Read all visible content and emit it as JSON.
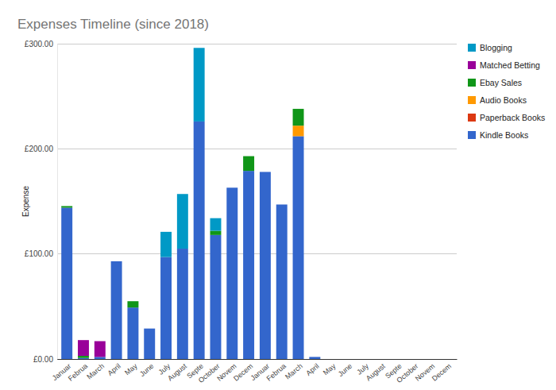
{
  "chart_data": {
    "type": "bar",
    "title": "Expenses Timeline (since 2018)",
    "y_label": "Expense",
    "stacked": true,
    "grid": true,
    "legend": "right",
    "categories": [
      "Januar",
      "Februa",
      "March",
      "April",
      "May",
      "June",
      "July",
      "August",
      "Septe",
      "October",
      "Novem",
      "Decem",
      "Januar",
      "Februa",
      "March",
      "April",
      "May",
      "June",
      "July",
      "August",
      "Septe",
      "October",
      "Novem",
      "Decem"
    ],
    "ylim": [
      0,
      300
    ],
    "yticks": [
      {
        "value": 0,
        "label": "£0.00"
      },
      {
        "value": 100,
        "label": "£100.00"
      },
      {
        "value": 200,
        "label": "£200.00"
      },
      {
        "value": 300,
        "label": "£300.00"
      }
    ],
    "series": [
      {
        "name": "Blogging",
        "color": "#0099c6",
        "values": [
          0,
          0,
          0,
          0,
          0,
          0,
          24,
          52,
          70,
          12,
          0,
          0,
          0,
          0,
          0,
          0,
          0,
          0,
          0,
          0,
          0,
          0,
          0,
          0
        ]
      },
      {
        "name": "Matched Betting",
        "color": "#990099",
        "values": [
          0,
          15,
          15,
          0,
          0,
          0,
          0,
          0,
          0,
          0,
          0,
          0,
          0,
          0,
          0,
          0,
          0,
          0,
          0,
          0,
          0,
          0,
          0,
          0
        ]
      },
      {
        "name": "Ebay Sales",
        "color": "#109618",
        "values": [
          1.5,
          2,
          0,
          0,
          6,
          0,
          0,
          0,
          0,
          4,
          0,
          14,
          0,
          0,
          16,
          0,
          0,
          0,
          0,
          0,
          0,
          0,
          0,
          0
        ]
      },
      {
        "name": "Audio Books",
        "color": "#ff9900",
        "values": [
          0,
          0,
          0,
          0,
          0,
          0,
          0,
          0,
          0,
          0,
          0,
          0,
          0,
          0,
          10,
          0,
          0,
          0,
          0,
          0,
          0,
          0,
          0,
          0
        ]
      },
      {
        "name": "Paperback Books",
        "color": "#dc3912",
        "values": [
          0,
          0,
          0,
          0,
          0,
          0,
          0,
          0,
          0,
          0,
          0,
          0,
          0,
          0,
          0,
          0,
          0,
          0,
          0,
          0,
          0,
          0,
          0,
          0
        ]
      },
      {
        "name": "Kindle Books",
        "color": "#3366cc",
        "values": [
          144,
          1,
          2,
          93,
          49,
          29,
          97,
          105,
          226,
          118,
          163,
          179,
          178,
          147,
          212,
          2,
          0,
          0,
          0,
          0,
          0,
          0,
          0,
          0
        ]
      }
    ]
  }
}
